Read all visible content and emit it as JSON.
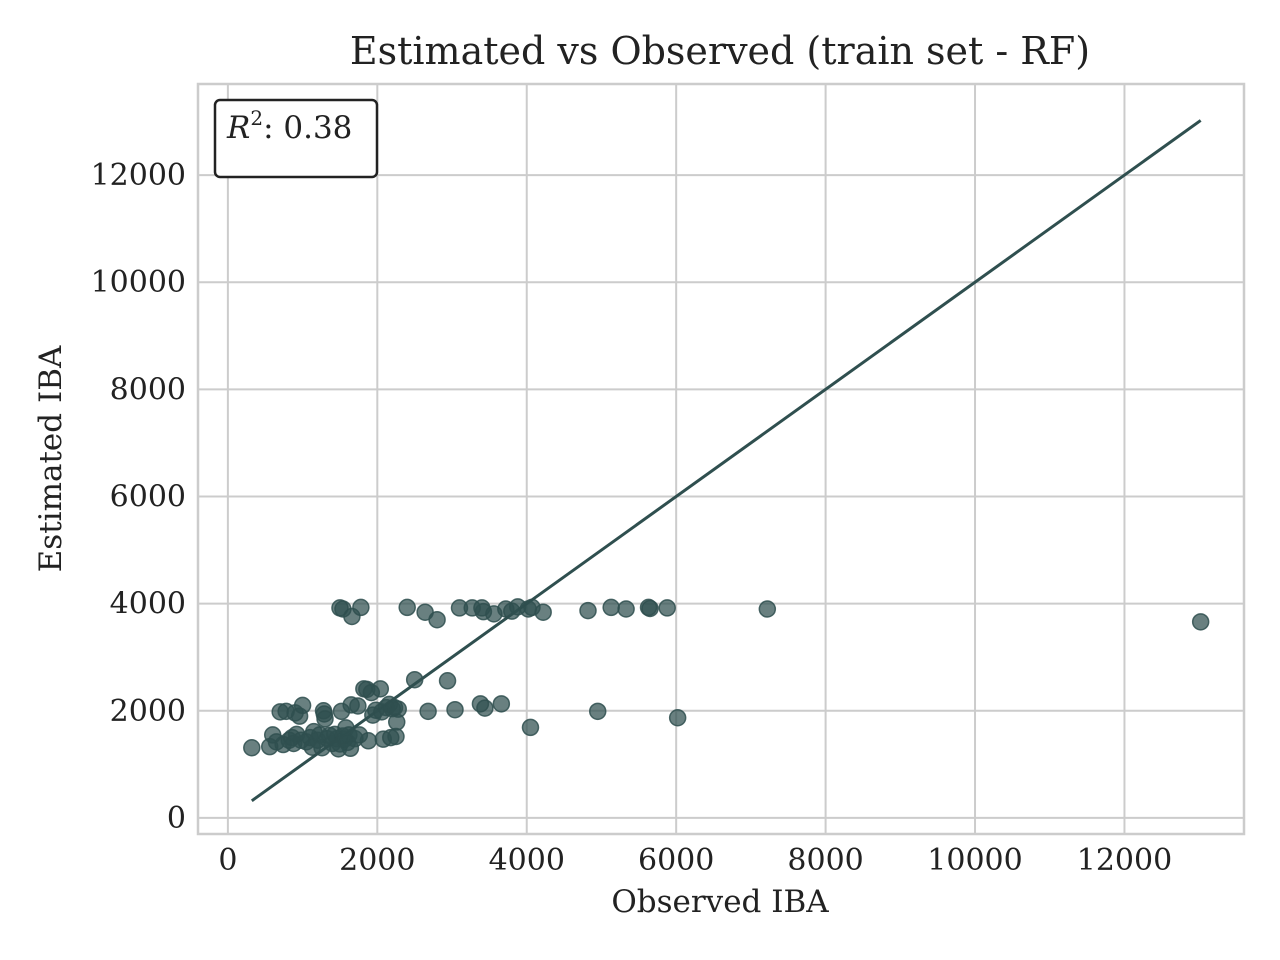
{
  "chart_data": {
    "type": "scatter",
    "title": "Estimated vs Observed (train set - RF)",
    "xlabel": "Observed IBA",
    "ylabel": "Estimated IBA",
    "xlim": [
      -400,
      13600
    ],
    "ylim": [
      -300,
      13700
    ],
    "xticks": [
      0,
      2000,
      4000,
      6000,
      8000,
      10000,
      12000
    ],
    "yticks": [
      0,
      2000,
      4000,
      6000,
      8000,
      10000,
      12000
    ],
    "xtick_labels": [
      "0",
      "2000",
      "4000",
      "6000",
      "8000",
      "10000",
      "12000"
    ],
    "ytick_labels": [
      "0",
      "2000",
      "4000",
      "6000",
      "8000",
      "10000",
      "12000"
    ],
    "grid": true,
    "color": "#2f4f4f",
    "annotation": {
      "prefix": "R",
      "superscript": "2",
      "text": ": 0.38",
      "placement": "top-left"
    },
    "reference_line": {
      "x": [
        320,
        13020
      ],
      "y": [
        320,
        13020
      ]
    },
    "points": [
      [
        320,
        1310
      ],
      [
        560,
        1330
      ],
      [
        600,
        1550
      ],
      [
        650,
        1420
      ],
      [
        700,
        1980
      ],
      [
        740,
        1370
      ],
      [
        780,
        1990
      ],
      [
        820,
        1450
      ],
      [
        860,
        1500
      ],
      [
        880,
        1390
      ],
      [
        900,
        1960
      ],
      [
        920,
        1560
      ],
      [
        960,
        1900
      ],
      [
        980,
        1450
      ],
      [
        1000,
        2100
      ],
      [
        1050,
        1420
      ],
      [
        1100,
        1500
      ],
      [
        1130,
        1320
      ],
      [
        1150,
        1610
      ],
      [
        1200,
        1450
      ],
      [
        1230,
        1550
      ],
      [
        1260,
        1310
      ],
      [
        1280,
        2000
      ],
      [
        1290,
        1940
      ],
      [
        1300,
        1850
      ],
      [
        1330,
        1480
      ],
      [
        1360,
        1540
      ],
      [
        1400,
        1390
      ],
      [
        1430,
        1560
      ],
      [
        1460,
        1480
      ],
      [
        1480,
        1290
      ],
      [
        1500,
        1380
      ],
      [
        1520,
        1990
      ],
      [
        1540,
        1530
      ],
      [
        1560,
        1470
      ],
      [
        1580,
        1680
      ],
      [
        1600,
        1410
      ],
      [
        1620,
        1550
      ],
      [
        1640,
        1300
      ],
      [
        1650,
        2110
      ],
      [
        1660,
        3760
      ],
      [
        1700,
        1480
      ],
      [
        1740,
        2090
      ],
      [
        1760,
        1550
      ],
      [
        1780,
        3930
      ],
      [
        1820,
        2410
      ],
      [
        1860,
        2400
      ],
      [
        1880,
        1440
      ],
      [
        1920,
        2340
      ],
      [
        1940,
        1920
      ],
      [
        1980,
        2010
      ],
      [
        2040,
        2410
      ],
      [
        2060,
        1980
      ],
      [
        2080,
        1470
      ],
      [
        2120,
        2060
      ],
      [
        2160,
        2120
      ],
      [
        2180,
        1500
      ],
      [
        2200,
        2040
      ],
      [
        2230,
        2060
      ],
      [
        2250,
        1520
      ],
      [
        2260,
        1790
      ],
      [
        2280,
        2030
      ],
      [
        1500,
        3920
      ],
      [
        1540,
        3900
      ],
      [
        2400,
        3930
      ],
      [
        2500,
        2580
      ],
      [
        2640,
        3840
      ],
      [
        2680,
        1990
      ],
      [
        2800,
        3700
      ],
      [
        2940,
        2560
      ],
      [
        3040,
        2020
      ],
      [
        3100,
        3920
      ],
      [
        3270,
        3920
      ],
      [
        3380,
        2130
      ],
      [
        3400,
        3920
      ],
      [
        3420,
        3850
      ],
      [
        3440,
        2050
      ],
      [
        3560,
        3810
      ],
      [
        3660,
        2130
      ],
      [
        3720,
        3900
      ],
      [
        3800,
        3860
      ],
      [
        3880,
        3940
      ],
      [
        4020,
        3900
      ],
      [
        4050,
        1690
      ],
      [
        4070,
        3930
      ],
      [
        4220,
        3840
      ],
      [
        4820,
        3870
      ],
      [
        4950,
        1990
      ],
      [
        5130,
        3930
      ],
      [
        5330,
        3900
      ],
      [
        5630,
        3930
      ],
      [
        5650,
        3910
      ],
      [
        5880,
        3920
      ],
      [
        6020,
        1870
      ],
      [
        7220,
        3900
      ],
      [
        13020,
        3660
      ]
    ]
  }
}
